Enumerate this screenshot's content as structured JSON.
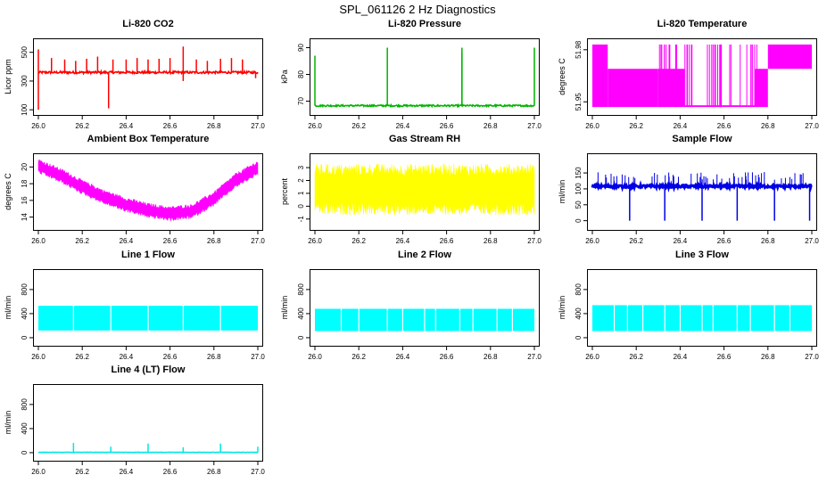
{
  "page": {
    "title": "SPL_061126  2 Hz Diagnostics"
  },
  "chart_data": [
    {
      "id": "co2",
      "type": "line",
      "title": "Li-820 CO2",
      "ylabel": "Licor ppm",
      "color": "#ff0000",
      "fill": false,
      "xlim": [
        26.0,
        27.0
      ],
      "xticks": [
        "26.0",
        "26.2",
        "26.4",
        "26.6",
        "26.8",
        "27.0"
      ],
      "ylim": [
        95,
        560
      ],
      "yticks": [
        100,
        300,
        500
      ],
      "baseline": [
        360,
        360
      ],
      "noise": 8,
      "spikes": [
        [
          26.0,
          520
        ],
        [
          26.0,
          100
        ],
        [
          26.06,
          460
        ],
        [
          26.12,
          450
        ],
        [
          26.17,
          440
        ],
        [
          26.22,
          455
        ],
        [
          26.27,
          470
        ],
        [
          26.32,
          110
        ],
        [
          26.34,
          450
        ],
        [
          26.4,
          450
        ],
        [
          26.45,
          460
        ],
        [
          26.5,
          450
        ],
        [
          26.55,
          455
        ],
        [
          26.6,
          460
        ],
        [
          26.66,
          540
        ],
        [
          26.66,
          300
        ],
        [
          26.72,
          450
        ],
        [
          26.77,
          440
        ],
        [
          26.83,
          455
        ],
        [
          26.88,
          460
        ],
        [
          26.93,
          450
        ],
        [
          26.99,
          320
        ]
      ]
    },
    {
      "id": "pressure",
      "type": "line",
      "title": "Li-820 Pressure",
      "ylabel": "kPa",
      "color": "#00b400",
      "fill": false,
      "xlim": [
        26.0,
        27.0
      ],
      "xticks": [
        "26.0",
        "26.2",
        "26.4",
        "26.6",
        "26.8",
        "27.0"
      ],
      "ylim": [
        66.5,
        91.5
      ],
      "yticks": [
        70,
        80,
        90
      ],
      "baseline": [
        68.3,
        68.3
      ],
      "noise": 0.3,
      "spikes": [
        [
          26.0,
          87
        ],
        [
          26.33,
          90
        ],
        [
          26.67,
          90
        ],
        [
          26.67,
          88
        ],
        [
          27.0,
          90
        ]
      ]
    },
    {
      "id": "licor-temp",
      "type": "area",
      "title": "Li-820 Temperature",
      "ylabel": "degrees C",
      "color": "#ff00ff",
      "fill": true,
      "xlim": [
        26.0,
        27.0
      ],
      "xticks": [
        "26.0",
        "26.2",
        "26.4",
        "26.6",
        "26.8",
        "27.0"
      ],
      "ylim": [
        51.945,
        51.9835
      ],
      "yticks": [
        51.95,
        51.98
      ],
      "segments": [
        [
          26.0,
          26.07,
          51.947,
          51.983
        ],
        [
          26.07,
          26.3,
          51.947,
          51.969
        ],
        [
          26.3,
          26.42,
          51.947,
          51.969
        ],
        [
          26.42,
          26.74,
          51.947,
          51.948
        ],
        [
          26.74,
          26.8,
          51.947,
          51.969
        ],
        [
          26.8,
          27.0,
          51.969,
          51.983
        ]
      ]
    },
    {
      "id": "ambient-temp",
      "type": "area",
      "title": "Ambient Box Temperature",
      "ylabel": "degrees C",
      "color": "#ff00ff",
      "fill": true,
      "xlim": [
        26.0,
        27.0
      ],
      "xticks": [
        "26.0",
        "26.2",
        "26.4",
        "26.6",
        "26.8",
        "27.0"
      ],
      "ylim": [
        13.0,
        21.0
      ],
      "yticks": [
        14,
        16,
        18,
        20
      ],
      "curve": [
        [
          26.0,
          20.1
        ],
        [
          26.1,
          19.0
        ],
        [
          26.2,
          17.6
        ],
        [
          26.3,
          16.4
        ],
        [
          26.4,
          15.5
        ],
        [
          26.5,
          14.8
        ],
        [
          26.6,
          14.4
        ],
        [
          26.7,
          14.7
        ],
        [
          26.8,
          16.2
        ],
        [
          26.9,
          18.4
        ],
        [
          27.0,
          19.9
        ]
      ],
      "spread": 0.9
    },
    {
      "id": "gas-rh",
      "type": "area",
      "title": "Gas Stream RH",
      "ylabel": "percent",
      "color": "#ffff00",
      "fill": true,
      "xlim": [
        26.0,
        27.0
      ],
      "xticks": [
        "26.0",
        "26.2",
        "26.4",
        "26.6",
        "26.8",
        "27.0"
      ],
      "ylim": [
        -1.5,
        3.7
      ],
      "yticks": [
        -1,
        0,
        1,
        2,
        3
      ],
      "curve": [
        [
          26.0,
          1.3
        ],
        [
          27.0,
          1.3
        ]
      ],
      "spread": 2.0
    },
    {
      "id": "sample-flow",
      "type": "line",
      "title": "Sample Flow",
      "ylabel": "ml/min",
      "color": "#0000e6",
      "fill": false,
      "xlim": [
        26.0,
        27.0
      ],
      "xticks": [
        "26.0",
        "26.2",
        "26.4",
        "26.6",
        "26.8",
        "27.0"
      ],
      "ylim": [
        -15,
        195
      ],
      "yticks": [
        0,
        50,
        100,
        150
      ],
      "baseline": [
        108,
        108
      ],
      "noise": 4,
      "spikes": [
        [
          26.17,
          0
        ],
        [
          26.33,
          0
        ],
        [
          26.5,
          0
        ],
        [
          26.66,
          0
        ],
        [
          26.83,
          0
        ],
        [
          26.99,
          0
        ]
      ],
      "fuzz": 140
    },
    {
      "id": "line1-flow",
      "type": "area",
      "title": "Line 1 Flow",
      "ylabel": "ml/min",
      "color": "#00ffff",
      "fill": true,
      "xlim": [
        26.0,
        27.0
      ],
      "xticks": [
        "26.0",
        "26.2",
        "26.4",
        "26.6",
        "26.8",
        "27.0"
      ],
      "ylim": [
        -60,
        1050
      ],
      "yticks": [
        0,
        400,
        800
      ],
      "band": [
        120,
        530
      ],
      "gaps": [
        26.16,
        26.33,
        26.5,
        26.66,
        26.83
      ]
    },
    {
      "id": "line2-flow",
      "type": "area",
      "title": "Line 2 Flow",
      "ylabel": "ml/min",
      "color": "#00ffff",
      "fill": true,
      "xlim": [
        26.0,
        27.0
      ],
      "xticks": [
        "26.0",
        "26.2",
        "26.4",
        "26.6",
        "26.8",
        "27.0"
      ],
      "ylim": [
        -60,
        1050
      ],
      "yticks": [
        0,
        400,
        800
      ],
      "band": [
        110,
        480
      ],
      "gaps": [
        26.12,
        26.2,
        26.33,
        26.4,
        26.5,
        26.55,
        26.66,
        26.72,
        26.83,
        26.9
      ]
    },
    {
      "id": "line3-flow",
      "type": "area",
      "title": "Line 3 Flow",
      "ylabel": "ml/min",
      "color": "#00ffff",
      "fill": true,
      "xlim": [
        26.0,
        27.0
      ],
      "xticks": [
        "26.0",
        "26.2",
        "26.4",
        "26.6",
        "26.8",
        "27.0"
      ],
      "ylim": [
        -60,
        1050
      ],
      "yticks": [
        0,
        400,
        800
      ],
      "band": [
        110,
        540
      ],
      "gaps": [
        26.1,
        26.16,
        26.23,
        26.33,
        26.4,
        26.5,
        26.55,
        26.66,
        26.72,
        26.83,
        26.9
      ]
    },
    {
      "id": "line4-flow",
      "type": "line",
      "title": "Line 4 (LT) Flow",
      "ylabel": "ml/min",
      "color": "#00e6e6",
      "fill": false,
      "xlim": [
        26.0,
        27.0
      ],
      "xticks": [
        "26.0",
        "26.2",
        "26.4",
        "26.6",
        "26.8",
        "27.0"
      ],
      "ylim": [
        -60,
        1050
      ],
      "yticks": [
        0,
        400,
        800
      ],
      "baseline": [
        5,
        5
      ],
      "noise": 3,
      "spikes": [
        [
          26.16,
          160
        ],
        [
          26.33,
          100
        ],
        [
          26.5,
          150
        ],
        [
          26.66,
          90
        ],
        [
          26.83,
          150
        ],
        [
          27.0,
          100
        ]
      ]
    }
  ]
}
